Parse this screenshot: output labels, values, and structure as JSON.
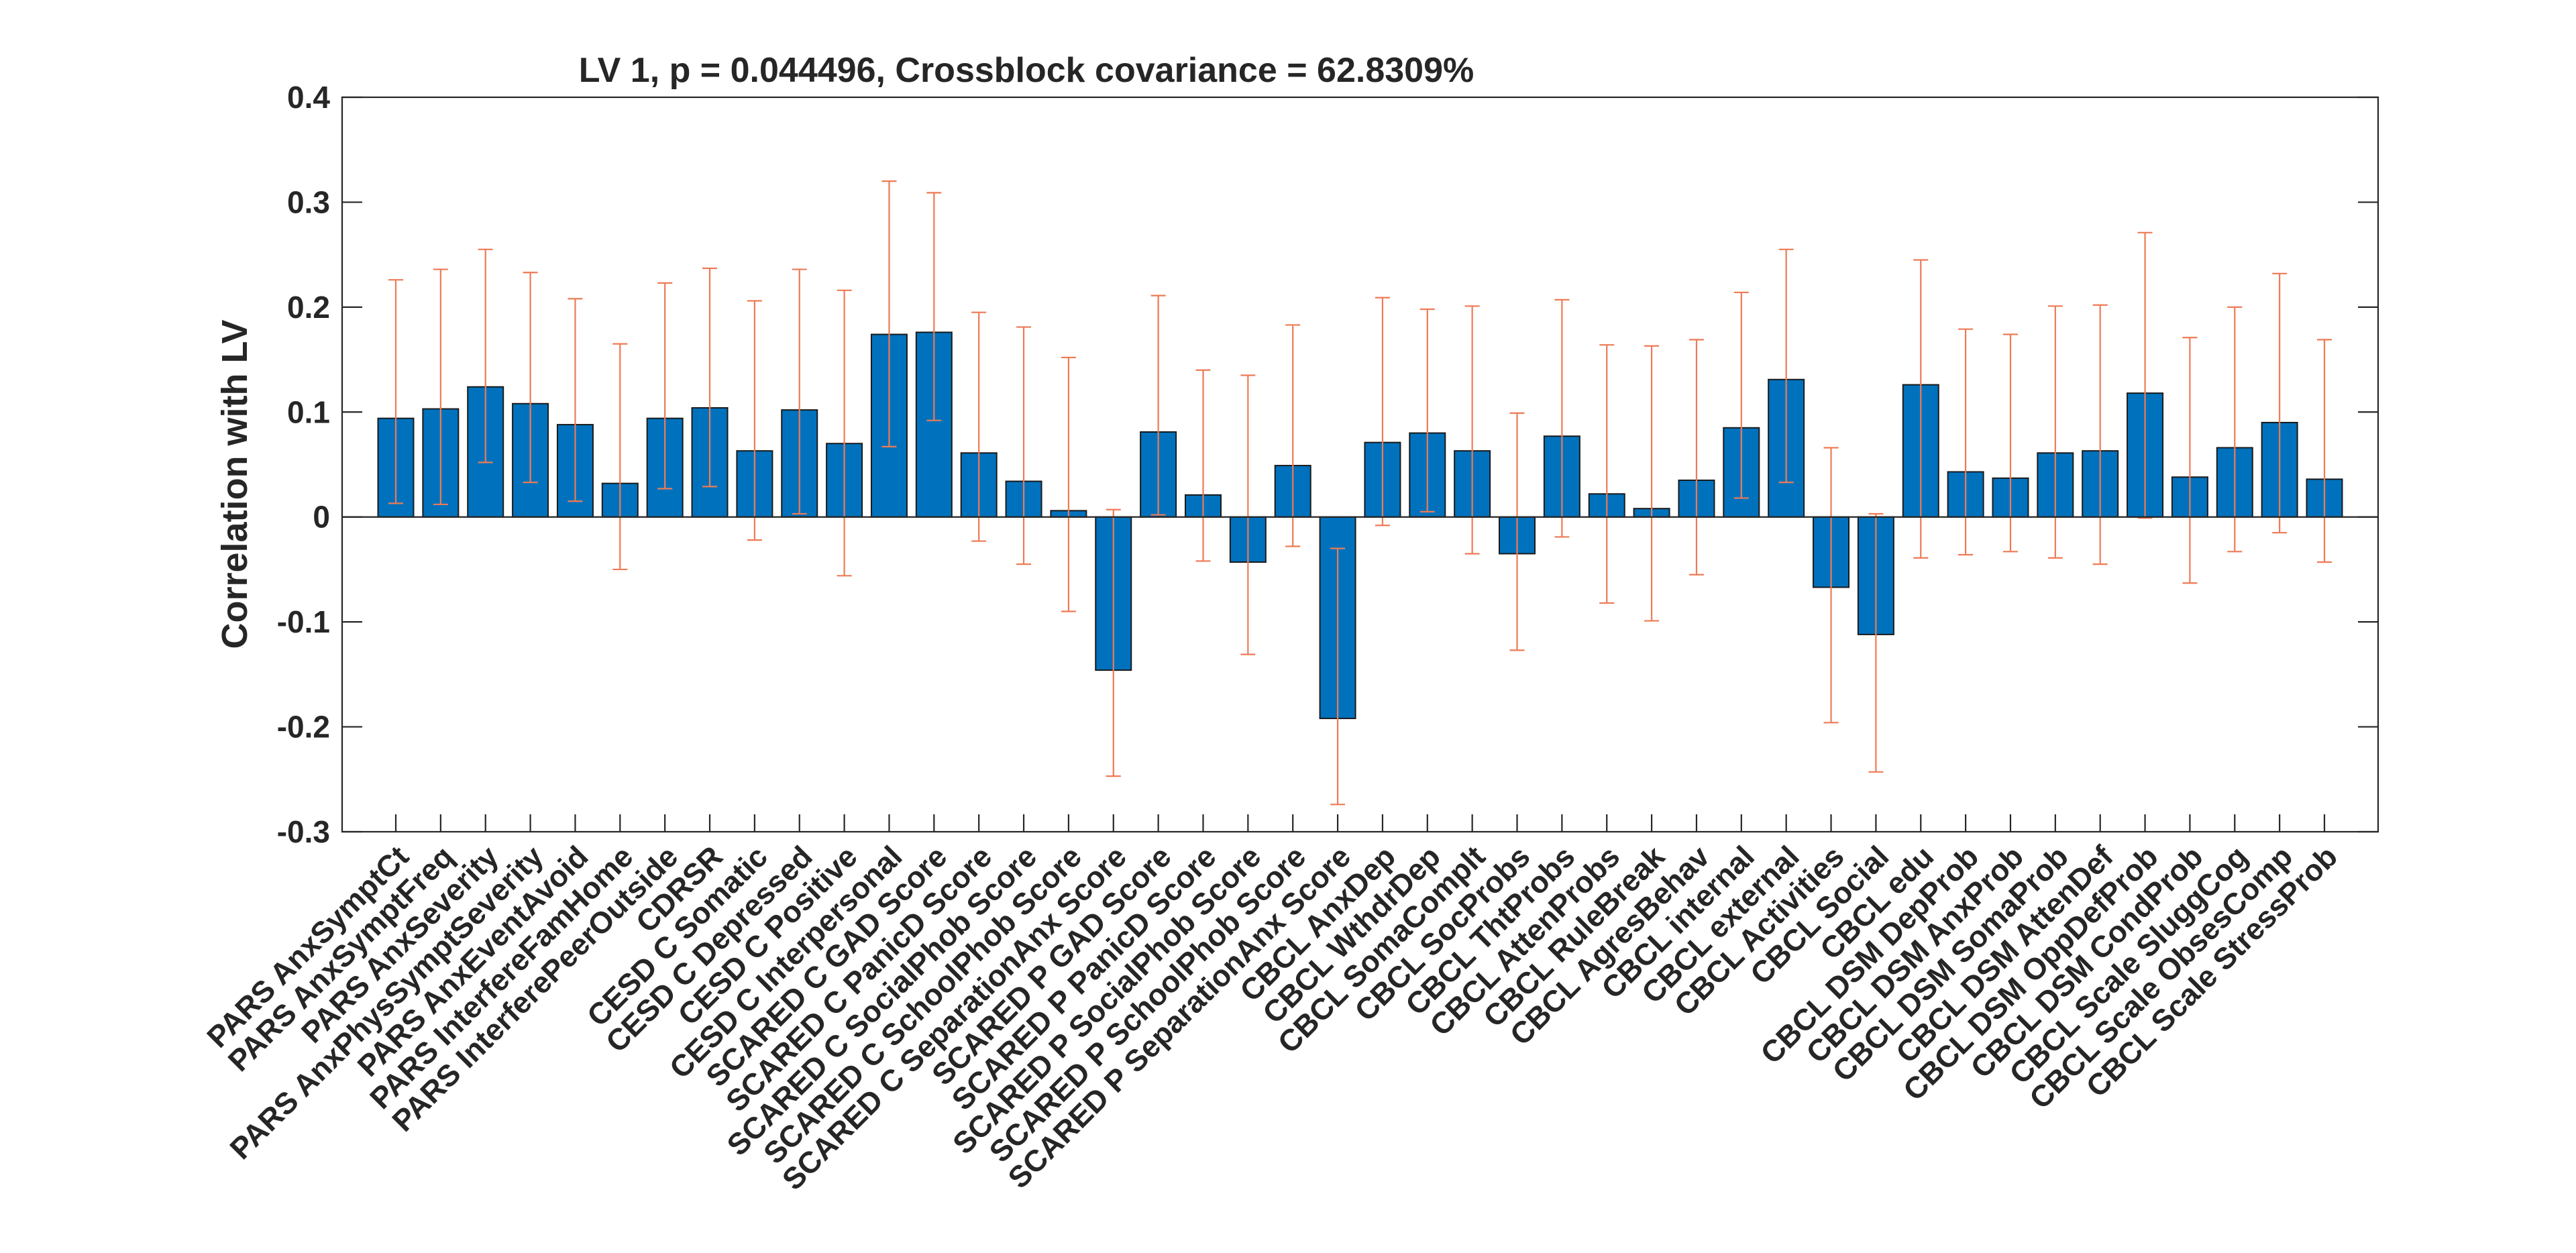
{
  "chart_data": {
    "type": "bar",
    "title": "LV 1, p = 0.044496, Crossblock covariance = 62.8309%",
    "xlabel": "",
    "ylabel": "Correlation with LV",
    "ylim": [
      -0.3,
      0.4
    ],
    "yticks": [
      "-0.3",
      "-0.2",
      "-0.1",
      "0",
      "0.1",
      "0.2",
      "0.3",
      "0.4"
    ],
    "grid": false,
    "colors": {
      "bar": "#0072BD",
      "bar_edge": "#1a1a1a",
      "errorbar": "#EE7A55",
      "axis": "#262626"
    },
    "categories": [
      "PARS AnxSymptCt",
      "PARS AnxSymptFreq",
      "PARS AnxSeverity",
      "PARS AnxPhysSymptSeverity",
      "PARS AnxEventAvoid",
      "PARS InterfereFamHome",
      "PARS InterferePeerOutside",
      "CDRSR",
      "CESD C Somatic",
      "CESD C Depressed",
      "CESD C Positive",
      "CESD C Interpersonal",
      "SCARED C GAD Score",
      "SCARED C PanicD Score",
      "SCARED C SocialPhob Score",
      "SCARED C SchoolPhob Score",
      "SCARED C SeparationAnx Score",
      "SCARED P GAD Score",
      "SCARED P PanicD Score",
      "SCARED P SocialPhob Score",
      "SCARED P SchoolPhob Score",
      "SCARED P SeparationAnx Score",
      "CBCL AnxDep",
      "CBCL WthdrDep",
      "CBCL SomaComplt",
      "CBCL SocProbs",
      "CBCL ThtProbs",
      "CBCL AttenProbs",
      "CBCL RuleBreak",
      "CBCL AgresBehav",
      "CBCL internal",
      "CBCL external",
      "CBCL Activities",
      "CBCL Social",
      "CBCL edu",
      "CBCL DSM DepProb",
      "CBCL DSM AnxProb",
      "CBCL DSM SomaProb",
      "CBCL DSM AttenDef",
      "CBCL DSM OppDefProb",
      "CBCL DSM CondProb",
      "CBCL Scale SluggCog",
      "CBCL Scale ObsesComp",
      "CBCL Scale StressProb"
    ],
    "values": [
      0.094,
      0.103,
      0.124,
      0.108,
      0.088,
      0.032,
      0.094,
      0.104,
      0.063,
      0.102,
      0.07,
      0.174,
      0.176,
      0.061,
      0.034,
      0.006,
      -0.146,
      0.081,
      0.021,
      -0.043,
      0.049,
      -0.192,
      0.071,
      0.08,
      0.063,
      -0.035,
      0.077,
      0.022,
      0.008,
      0.035,
      0.085,
      0.131,
      -0.067,
      -0.112,
      0.126,
      0.043,
      0.037,
      0.061,
      0.063,
      0.118,
      0.038,
      0.066,
      0.09,
      0.036
    ],
    "error_lower": [
      0.013,
      0.012,
      0.052,
      0.033,
      0.015,
      -0.05,
      0.027,
      0.029,
      -0.022,
      0.003,
      -0.056,
      0.067,
      0.092,
      -0.023,
      -0.045,
      -0.09,
      -0.247,
      0.002,
      -0.042,
      -0.131,
      -0.028,
      -0.274,
      -0.008,
      0.005,
      -0.035,
      -0.127,
      -0.019,
      -0.082,
      -0.099,
      -0.055,
      0.018,
      0.033,
      -0.196,
      -0.243,
      -0.039,
      -0.036,
      -0.033,
      -0.039,
      -0.045,
      -0.001,
      -0.063,
      -0.033,
      -0.015,
      -0.043
    ],
    "error_upper": [
      0.226,
      0.236,
      0.255,
      0.233,
      0.208,
      0.165,
      0.223,
      0.237,
      0.206,
      0.236,
      0.216,
      0.32,
      0.309,
      0.195,
      0.181,
      0.152,
      0.007,
      0.211,
      0.14,
      0.135,
      0.183,
      -0.03,
      0.209,
      0.198,
      0.201,
      0.099,
      0.207,
      0.164,
      0.163,
      0.169,
      0.214,
      0.255,
      0.066,
      0.003,
      0.245,
      0.179,
      0.174,
      0.201,
      0.202,
      0.271,
      0.171,
      0.2,
      0.232,
      0.169
    ]
  }
}
